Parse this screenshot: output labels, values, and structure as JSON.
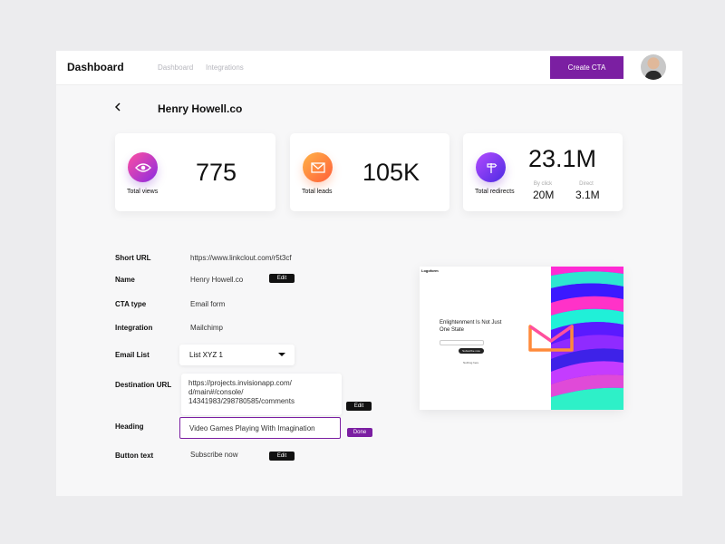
{
  "header": {
    "title": "Dashboard",
    "nav": [
      "Dashboard",
      "Integrations"
    ],
    "cta_label": "Create CTA",
    "avatar_icon": "user-avatar"
  },
  "page": {
    "back_icon": "chevron-left-icon",
    "title": "Henry Howell.co"
  },
  "stats": {
    "views": {
      "label": "Total views",
      "value": "775",
      "icon": "eye-icon"
    },
    "leads": {
      "label": "Total leads",
      "value": "105K",
      "icon": "envelope-icon"
    },
    "redirects": {
      "label": "Total redirects",
      "value": "23.1M",
      "icon": "signpost-icon",
      "by_click_label": "By click",
      "by_click_value": "20M",
      "direct_label": "Direct",
      "direct_value": "3.1M"
    }
  },
  "details": {
    "short_url_label": "Short URL",
    "short_url": "https://www.linkclout.com/r5t3cf",
    "name_label": "Name",
    "name": "Henry Howell.co",
    "cta_type_label": "CTA type",
    "cta_type": "Email form",
    "integration_label": "Integration",
    "integration": "Mailchimp",
    "email_list_label": "Email List",
    "email_list": "List XYZ 1",
    "destination_label": "Destination URL",
    "destination_url": "https://projects.invisionapp.com/\nd/main#/console/\n14341983/298780585/comments",
    "heading_label": "Heading",
    "heading": "Video Games Playing With Imagination",
    "button_text_label": "Button text",
    "button_text": "Subscribe now",
    "edit_label": "Edit",
    "done_label": "Done"
  },
  "preview": {
    "logo": "Logoform",
    "heading": "Enlightenment Is Not Just One State",
    "button": "Subscribe now",
    "small_text": "Nothing here"
  },
  "colors": {
    "accent": "#7b1fa2",
    "views_gradient": [
      "#ff4fa0",
      "#8a2be2"
    ],
    "leads_gradient": [
      "#ffb347",
      "#ff5e3a"
    ],
    "redirects_gradient": [
      "#b44bff",
      "#4b2be2"
    ]
  }
}
